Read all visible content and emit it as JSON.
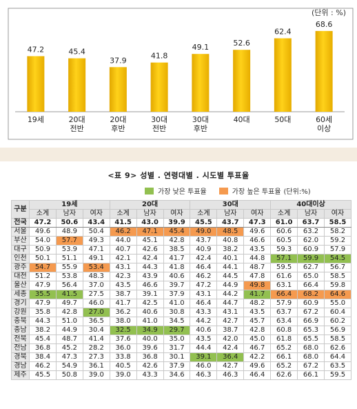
{
  "chart_data": {
    "type": "bar",
    "unit": "(단위 : %)",
    "categories": [
      "19세",
      "20대\n전반",
      "20대\n후반",
      "30대\n전반",
      "30대\n후반",
      "40대",
      "50대",
      "60세\n이상"
    ],
    "values": [
      47.2,
      45.4,
      37.9,
      41.8,
      49.1,
      52.6,
      62.4,
      68.6
    ],
    "ylim": [
      0,
      75
    ],
    "color": "#f5c000"
  },
  "table": {
    "title": "<표 9> 성별 . 연령대별 . 시도별 투표율",
    "legend_low": "가장 낮은 투표율",
    "legend_high": "가장 높은 투표율",
    "unit": "(단위:%)",
    "header_region": "구분",
    "groups": [
      "19세",
      "20대",
      "30대",
      "40대이상"
    ],
    "subs": [
      "소계",
      "남자",
      "여자"
    ],
    "rows": [
      {
        "region": "전국",
        "values": [
          "47.2",
          "50.6",
          "43.4",
          "41.5",
          "43.0",
          "39.9",
          "45.5",
          "43.7",
          "47.3",
          "61.0",
          "63.7",
          "58.5"
        ],
        "hl": "............",
        "total": true
      },
      {
        "region": "서울",
        "values": [
          "49.6",
          "48.9",
          "50.4",
          "46.2",
          "47.1",
          "45.4",
          "49.0",
          "48.5",
          "49.6",
          "60.6",
          "63.2",
          "58.2"
        ],
        "hl": "...HHHHH...."
      },
      {
        "region": "부산",
        "values": [
          "54.0",
          "57.7",
          "49.3",
          "44.0",
          "45.1",
          "42.8",
          "43.7",
          "40.8",
          "46.6",
          "60.5",
          "62.0",
          "59.2"
        ],
        "hl": ".H.........."
      },
      {
        "region": "대구",
        "values": [
          "50.9",
          "53.9",
          "47.1",
          "40.7",
          "42.6",
          "38.5",
          "40.9",
          "38.2",
          "43.5",
          "59.3",
          "60.9",
          "57.9"
        ],
        "hl": "............"
      },
      {
        "region": "인천",
        "values": [
          "50.1",
          "51.1",
          "49.1",
          "42.1",
          "42.4",
          "41.7",
          "42.4",
          "40.1",
          "44.8",
          "57.1",
          "59.9",
          "54.5"
        ],
        "hl": ".........LLL"
      },
      {
        "region": "광주",
        "values": [
          "54.7",
          "55.9",
          "53.4",
          "43.1",
          "44.3",
          "41.8",
          "46.4",
          "44.1",
          "48.7",
          "59.5",
          "62.7",
          "56.7"
        ],
        "hl": "H.H........."
      },
      {
        "region": "대전",
        "values": [
          "51.2",
          "53.8",
          "48.3",
          "42.3",
          "43.9",
          "40.6",
          "46.2",
          "44.5",
          "47.8",
          "61.6",
          "65.0",
          "58.5"
        ],
        "hl": "............"
      },
      {
        "region": "울산",
        "values": [
          "47.9",
          "56.4",
          "37.0",
          "43.5",
          "46.6",
          "39.7",
          "47.2",
          "44.9",
          "49.8",
          "63.1",
          "66.4",
          "59.8"
        ],
        "hl": "........H..."
      },
      {
        "region": "세종",
        "values": [
          "35.5",
          "41.5",
          "27.5",
          "38.7",
          "39.1",
          "37.9",
          "43.1",
          "44.2",
          "41.7",
          "66.4",
          "68.2",
          "64.6"
        ],
        "hl": "LL......LHHH"
      },
      {
        "region": "경기",
        "values": [
          "47.9",
          "49.7",
          "46.0",
          "41.7",
          "42.5",
          "41.0",
          "46.4",
          "44.7",
          "48.2",
          "57.9",
          "60.9",
          "55.0"
        ],
        "hl": "............"
      },
      {
        "region": "강원",
        "values": [
          "35.8",
          "42.8",
          "27.0",
          "36.2",
          "40.6",
          "30.8",
          "43.3",
          "43.1",
          "43.5",
          "63.7",
          "67.2",
          "60.4"
        ],
        "hl": "..L........."
      },
      {
        "region": "충북",
        "values": [
          "44.3",
          "51.0",
          "36.5",
          "38.0",
          "41.0",
          "34.5",
          "44.2",
          "42.7",
          "45.7",
          "63.4",
          "66.9",
          "60.2"
        ],
        "hl": "............"
      },
      {
        "region": "충남",
        "values": [
          "38.2",
          "44.9",
          "30.4",
          "32.5",
          "34.9",
          "29.7",
          "40.6",
          "38.7",
          "42.8",
          "60.8",
          "65.3",
          "56.9"
        ],
        "hl": "...LLL......"
      },
      {
        "region": "전북",
        "values": [
          "45.4",
          "48.7",
          "41.4",
          "37.6",
          "40.0",
          "35.0",
          "43.5",
          "42.0",
          "45.0",
          "61.8",
          "65.5",
          "58.5"
        ],
        "hl": "............"
      },
      {
        "region": "전남",
        "values": [
          "36.8",
          "45.2",
          "28.2",
          "36.0",
          "39.6",
          "31.7",
          "44.4",
          "42.4",
          "46.7",
          "65.2",
          "68.0",
          "62.6"
        ],
        "hl": "............"
      },
      {
        "region": "경북",
        "values": [
          "38.4",
          "47.3",
          "27.3",
          "33.8",
          "36.8",
          "30.1",
          "39.1",
          "36.4",
          "42.2",
          "66.1",
          "68.0",
          "64.4"
        ],
        "hl": "......LL...."
      },
      {
        "region": "경남",
        "values": [
          "46.2",
          "54.9",
          "36.1",
          "40.5",
          "42.6",
          "37.9",
          "46.0",
          "42.7",
          "49.6",
          "65.2",
          "67.2",
          "63.5"
        ],
        "hl": "............"
      },
      {
        "region": "제주",
        "values": [
          "45.5",
          "50.8",
          "39.0",
          "39.0",
          "43.3",
          "34.6",
          "46.3",
          "46.3",
          "46.4",
          "62.6",
          "66.1",
          "59.5"
        ],
        "hl": "............"
      }
    ]
  }
}
